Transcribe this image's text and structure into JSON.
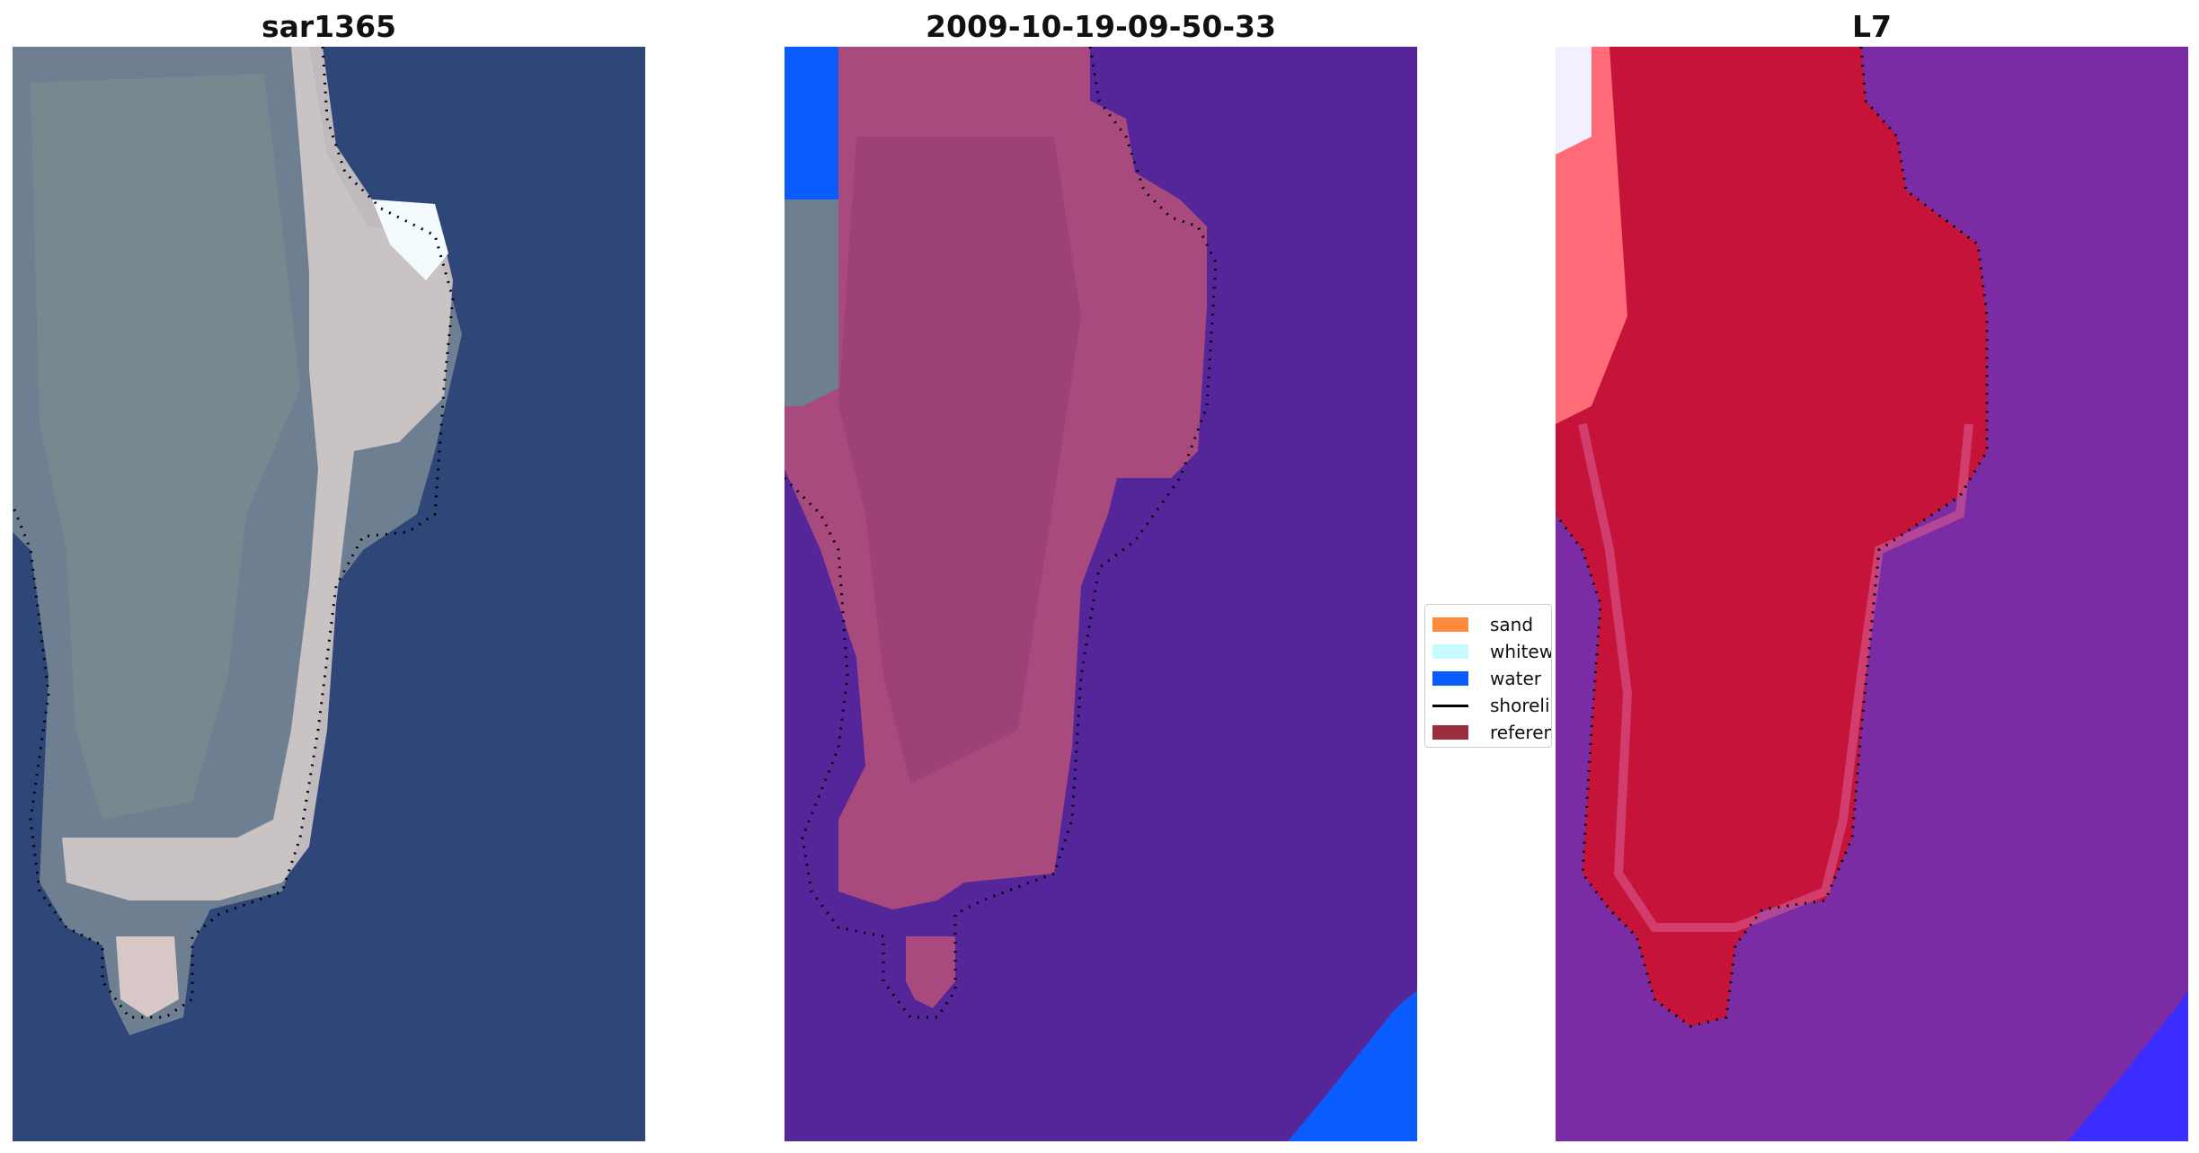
{
  "panels": [
    {
      "title": "sar1365"
    },
    {
      "title": "2009-10-19-09-50-33"
    },
    {
      "title": "L7"
    }
  ],
  "legend": {
    "items": [
      {
        "label": "sand",
        "color": "#ff8a3d",
        "kind": "patch"
      },
      {
        "label": "whitewater",
        "color": "#c8fbff",
        "kind": "patch"
      },
      {
        "label": "water",
        "color": "#0a5cff",
        "kind": "patch"
      },
      {
        "label": "shoreline",
        "color": "#000000",
        "kind": "line"
      },
      {
        "label": "reference",
        "color": "#9a2f3c",
        "kind": "patch"
      }
    ]
  },
  "colors": {
    "ocean_rgb": "#2d4579",
    "land_rgb": "#7d8a9a",
    "beach_rgb": "#dcd3cf",
    "classified_water": "#55259a",
    "classified_land": "#a94a7e",
    "mndwi_land": "#c5133a",
    "mndwi_water": "#7b2ba3",
    "water_blue": "#0a5cff"
  }
}
